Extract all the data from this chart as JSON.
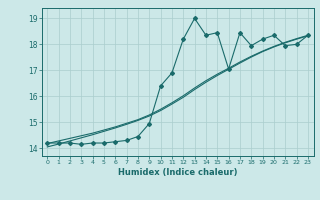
{
  "title": "",
  "xlabel": "Humidex (Indice chaleur)",
  "background_color": "#cce8e8",
  "grid_color": "#aacece",
  "line_color": "#1a6b6b",
  "xlim": [
    -0.5,
    23.5
  ],
  "ylim": [
    13.7,
    19.4
  ],
  "ytick_values": [
    14,
    15,
    16,
    17,
    18,
    19
  ],
  "series1_x": [
    0,
    1,
    2,
    3,
    4,
    5,
    6,
    7,
    8,
    9,
    10,
    11,
    12,
    13,
    14,
    15,
    16,
    17,
    18,
    19,
    20,
    21,
    22,
    23
  ],
  "series1_y": [
    14.2,
    14.2,
    14.2,
    14.15,
    14.2,
    14.2,
    14.25,
    14.3,
    14.45,
    14.95,
    16.4,
    16.9,
    18.2,
    19.0,
    18.35,
    18.45,
    17.05,
    18.45,
    17.95,
    18.2,
    18.35,
    17.95,
    18.0,
    18.35
  ],
  "series2_x": [
    0,
    1,
    2,
    3,
    4,
    5,
    6,
    7,
    8,
    9,
    10,
    11,
    12,
    13,
    14,
    15,
    16,
    17,
    18,
    19,
    20,
    21,
    22,
    23
  ],
  "series2_y": [
    14.18,
    14.28,
    14.38,
    14.48,
    14.58,
    14.7,
    14.82,
    14.96,
    15.1,
    15.28,
    15.5,
    15.75,
    16.02,
    16.32,
    16.6,
    16.85,
    17.08,
    17.32,
    17.54,
    17.74,
    17.92,
    18.08,
    18.22,
    18.35
  ],
  "series3_x": [
    0,
    1,
    2,
    3,
    4,
    5,
    6,
    7,
    8,
    9,
    10,
    11,
    12,
    13,
    14,
    15,
    16,
    17,
    18,
    19,
    20,
    21,
    22,
    23
  ],
  "series3_y": [
    14.05,
    14.16,
    14.28,
    14.4,
    14.52,
    14.65,
    14.78,
    14.92,
    15.07,
    15.24,
    15.45,
    15.7,
    15.96,
    16.26,
    16.54,
    16.8,
    17.04,
    17.28,
    17.51,
    17.72,
    17.9,
    18.06,
    18.2,
    18.33
  ]
}
